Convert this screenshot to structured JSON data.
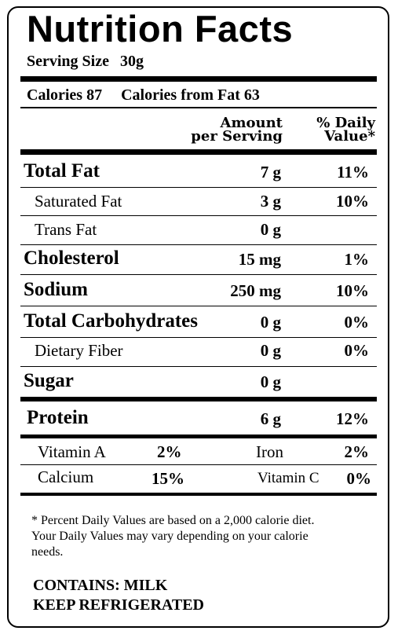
{
  "title": "Nutrition Facts",
  "serving": {
    "label": "Serving Size",
    "value": "30g"
  },
  "calories": {
    "label": "Calories 87",
    "fat_label": "Calories from Fat  63"
  },
  "header": {
    "amount_line1": "Amount",
    "amount_line2": "per Serving",
    "dv_line1": "% Daily",
    "dv_line2": "Value*"
  },
  "nutrients": [
    {
      "name": "Total Fat",
      "amount": "7 g",
      "dv": "11%"
    },
    {
      "name": "Saturated Fat",
      "amount": "3 g",
      "dv": "10%"
    },
    {
      "name": "Trans Fat",
      "amount": "0 g",
      "dv": ""
    },
    {
      "name": "Cholesterol",
      "amount": "15 mg",
      "dv": "1%"
    },
    {
      "name": "Sodium",
      "amount": "250 mg",
      "dv": "10%"
    },
    {
      "name": "Total Carbohydrates",
      "amount": "0 g",
      "dv": "0%"
    },
    {
      "name": "Dietary Fiber",
      "amount": "0 g",
      "dv": "0%"
    },
    {
      "name": "Sugar",
      "amount": "0 g",
      "dv": ""
    },
    {
      "name": "Protein",
      "amount": "6 g",
      "dv": "12%"
    }
  ],
  "vitamins": [
    {
      "name": "Vitamin A",
      "value": "2%"
    },
    {
      "name": "Iron",
      "value": "2%"
    },
    {
      "name": "Calcium",
      "value": "15%"
    },
    {
      "name": "Vitamin C",
      "value": "0%"
    }
  ],
  "footnote": {
    "asterisk": "*",
    "line1": " Percent Daily Values are based on a 2,000 calorie diet.",
    "line2": "Your Daily Values may  vary depending on  your calorie",
    "line3": "needs."
  },
  "contains": "CONTAINS:  MILK",
  "storage": "KEEP REFRIGERATED"
}
